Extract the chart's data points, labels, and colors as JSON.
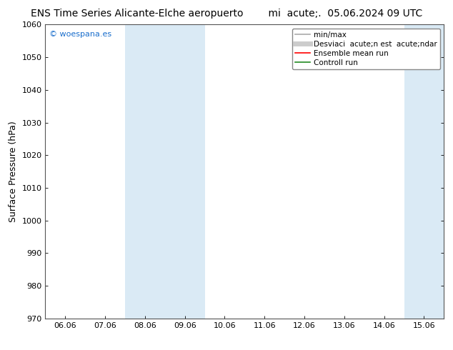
{
  "title_left": "ENS Time Series Alicante-Elche aeropuerto",
  "title_right": "mi  acute;.  05.06.2024 09 UTC",
  "ylabel": "Surface Pressure (hPa)",
  "ylim": [
    970,
    1060
  ],
  "yticks": [
    970,
    980,
    990,
    1000,
    1010,
    1020,
    1030,
    1040,
    1050,
    1060
  ],
  "xtick_labels": [
    "06.06",
    "07.06",
    "08.06",
    "09.06",
    "10.06",
    "11.06",
    "12.06",
    "13.06",
    "14.06",
    "15.06"
  ],
  "x_positions": [
    0,
    1,
    2,
    3,
    4,
    5,
    6,
    7,
    8,
    9
  ],
  "xlim_min": -0.5,
  "xlim_max": 9.5,
  "shaded_regions": [
    {
      "x_start": 1.5,
      "x_end": 3.5,
      "color": "#daeaf5"
    },
    {
      "x_start": 8.5,
      "x_end": 9.5,
      "color": "#daeaf5"
    }
  ],
  "watermark": "© woespana.es",
  "watermark_color": "#1a6ecc",
  "background_color": "#ffffff",
  "legend_entries": [
    {
      "label": "min/max",
      "color": "#aaaaaa",
      "lw": 1.2,
      "style": "-"
    },
    {
      "label": "Desviaci  acute;n est  acute;ndar",
      "color": "#cccccc",
      "lw": 5,
      "style": "-"
    },
    {
      "label": "Ensemble mean run",
      "color": "#ff0000",
      "lw": 1.2,
      "style": "-"
    },
    {
      "label": "Controll run",
      "color": "#228B22",
      "lw": 1.2,
      "style": "-"
    }
  ],
  "font_family": "DejaVu Sans",
  "title_fontsize": 10,
  "ylabel_fontsize": 9,
  "tick_fontsize": 8,
  "legend_fontsize": 7.5,
  "watermark_fontsize": 8
}
